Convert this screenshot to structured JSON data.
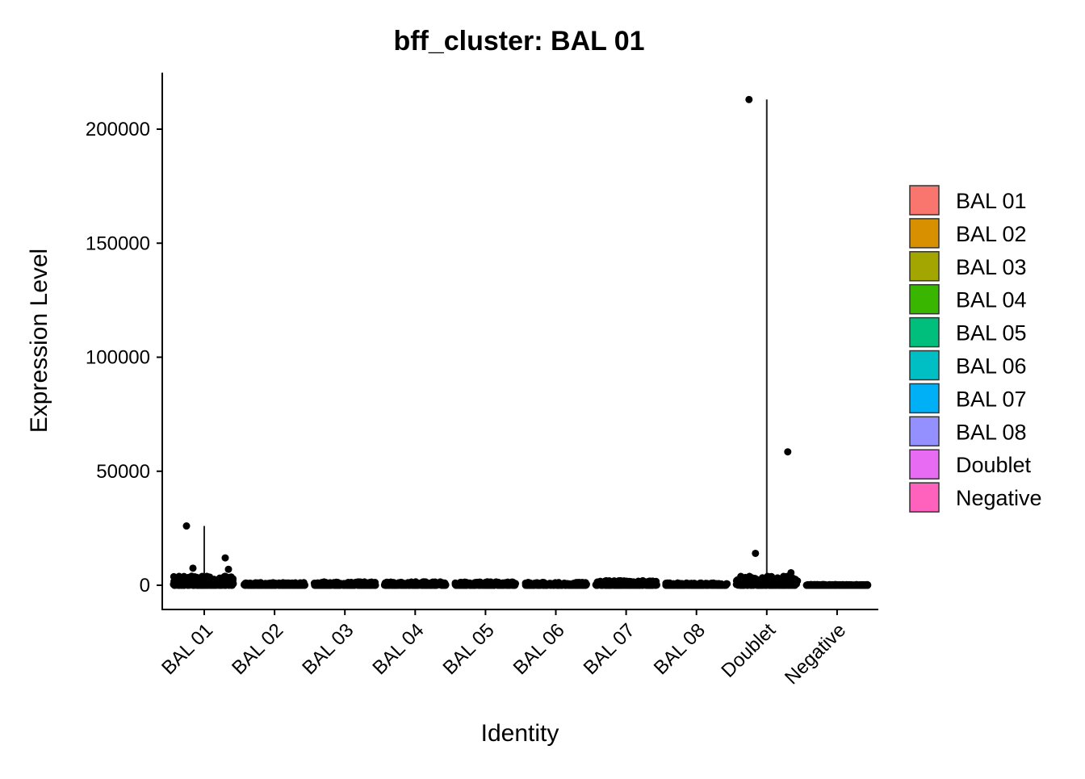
{
  "chart_data": {
    "type": "scatter",
    "subtype": "violin-jitter",
    "title": "bff_cluster: BAL 01",
    "xlabel": "Identity",
    "ylabel": "Expression Level",
    "ylim": [
      -10000,
      225000
    ],
    "yticks": [
      0,
      50000,
      100000,
      150000,
      200000
    ],
    "ytick_labels": [
      "0",
      "50000",
      "100000",
      "150000",
      "200000"
    ],
    "categories": [
      "BAL 01",
      "BAL 02",
      "BAL 03",
      "BAL 04",
      "BAL 05",
      "BAL 06",
      "BAL 07",
      "BAL 08",
      "Doublet",
      "Negative"
    ],
    "legend": {
      "placement": "right",
      "entries": [
        {
          "label": "BAL 01",
          "color": "#F8766D"
        },
        {
          "label": "BAL 02",
          "color": "#D89000"
        },
        {
          "label": "BAL 03",
          "color": "#A3A500"
        },
        {
          "label": "BAL 04",
          "color": "#39B600"
        },
        {
          "label": "BAL 05",
          "color": "#00BF7D"
        },
        {
          "label": "BAL 06",
          "color": "#00BFC4"
        },
        {
          "label": "BAL 07",
          "color": "#00B0F6"
        },
        {
          "label": "BAL 08",
          "color": "#9590FF"
        },
        {
          "label": "Doublet",
          "color": "#E76BF3"
        },
        {
          "label": "Negative",
          "color": "#FF62BC"
        }
      ]
    },
    "grid": false,
    "series": [
      {
        "category": "BAL 01",
        "max": 26000,
        "band_max": 4000,
        "outliers": [
          26000,
          12000,
          7500,
          7000
        ]
      },
      {
        "category": "BAL 02",
        "max": 1200,
        "band_max": 1200,
        "outliers": []
      },
      {
        "category": "BAL 03",
        "max": 1500,
        "band_max": 1500,
        "outliers": []
      },
      {
        "category": "BAL 04",
        "max": 1500,
        "band_max": 1500,
        "outliers": []
      },
      {
        "category": "BAL 05",
        "max": 1500,
        "band_max": 1500,
        "outliers": []
      },
      {
        "category": "BAL 06",
        "max": 1300,
        "band_max": 1300,
        "outliers": []
      },
      {
        "category": "BAL 07",
        "max": 2000,
        "band_max": 2000,
        "outliers": []
      },
      {
        "category": "BAL 08",
        "max": 1000,
        "band_max": 1000,
        "outliers": []
      },
      {
        "category": "Doublet",
        "max": 213000,
        "band_max": 4000,
        "outliers": [
          213000,
          58500,
          14000,
          5500
        ]
      },
      {
        "category": "Negative",
        "max": 300,
        "band_max": 300,
        "outliers": []
      }
    ]
  }
}
